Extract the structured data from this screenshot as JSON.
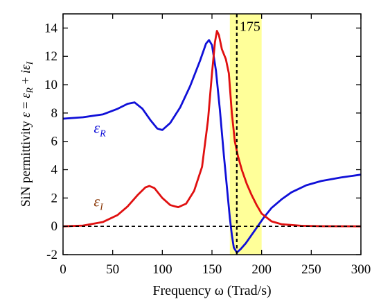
{
  "chart_data": {
    "type": "line",
    "xlabel": "Frequency ω (Trad/s)",
    "ylabel": {
      "prefix": "SiN permittivity ",
      "eps": "ε",
      "eq": " = ",
      "epsR": "ε",
      "subR": "R",
      "plus": " + ",
      "i": "i",
      "epsI": "ε",
      "subI": "I"
    },
    "xlim": [
      0,
      300
    ],
    "ylim": [
      -2,
      15
    ],
    "xticks": [
      0,
      50,
      100,
      150,
      200,
      250,
      300
    ],
    "yticks": [
      -2,
      0,
      2,
      4,
      6,
      8,
      10,
      12,
      14
    ],
    "highlight": {
      "x_from": 168,
      "x_to": 200,
      "color": "#ffff99"
    },
    "marker_line": {
      "x": 175,
      "label": "175"
    },
    "zero_line": {
      "y": 0
    },
    "series": [
      {
        "name": "εR",
        "label_main": "ε",
        "label_sub": "R",
        "color": "#1010d8",
        "points": [
          [
            0,
            7.6
          ],
          [
            20,
            7.7
          ],
          [
            40,
            7.9
          ],
          [
            55,
            8.3
          ],
          [
            65,
            8.65
          ],
          [
            72,
            8.75
          ],
          [
            80,
            8.3
          ],
          [
            88,
            7.5
          ],
          [
            95,
            6.9
          ],
          [
            100,
            6.8
          ],
          [
            108,
            7.3
          ],
          [
            118,
            8.4
          ],
          [
            128,
            9.9
          ],
          [
            138,
            11.7
          ],
          [
            144,
            12.9
          ],
          [
            147,
            13.15
          ],
          [
            150,
            12.8
          ],
          [
            154,
            11.0
          ],
          [
            158,
            8.2
          ],
          [
            162,
            5.0
          ],
          [
            165,
            2.8
          ],
          [
            168,
            0.6
          ],
          [
            170,
            -0.6
          ],
          [
            172,
            -1.5
          ],
          [
            175,
            -1.85
          ],
          [
            179,
            -1.6
          ],
          [
            184,
            -1.2
          ],
          [
            190,
            -0.6
          ],
          [
            196,
            0.0
          ],
          [
            202,
            0.6
          ],
          [
            210,
            1.3
          ],
          [
            220,
            1.9
          ],
          [
            230,
            2.4
          ],
          [
            245,
            2.9
          ],
          [
            260,
            3.2
          ],
          [
            280,
            3.45
          ],
          [
            300,
            3.65
          ]
        ]
      },
      {
        "name": "εI",
        "label_main": "ε",
        "label_sub": "I",
        "color": "#e01010",
        "points": [
          [
            0,
            0.0
          ],
          [
            20,
            0.05
          ],
          [
            40,
            0.3
          ],
          [
            55,
            0.8
          ],
          [
            65,
            1.4
          ],
          [
            75,
            2.2
          ],
          [
            83,
            2.75
          ],
          [
            87,
            2.85
          ],
          [
            92,
            2.7
          ],
          [
            100,
            2.0
          ],
          [
            108,
            1.5
          ],
          [
            116,
            1.35
          ],
          [
            124,
            1.6
          ],
          [
            132,
            2.5
          ],
          [
            140,
            4.2
          ],
          [
            146,
            7.5
          ],
          [
            150,
            10.8
          ],
          [
            153,
            13.0
          ],
          [
            155,
            13.8
          ],
          [
            157,
            13.5
          ],
          [
            160,
            12.5
          ],
          [
            164,
            11.8
          ],
          [
            167,
            10.8
          ],
          [
            170,
            8.0
          ],
          [
            173,
            6.0
          ],
          [
            176,
            5.0
          ],
          [
            180,
            4.0
          ],
          [
            185,
            3.0
          ],
          [
            190,
            2.2
          ],
          [
            195,
            1.5
          ],
          [
            200,
            0.9
          ],
          [
            210,
            0.35
          ],
          [
            220,
            0.15
          ],
          [
            240,
            0.04
          ],
          [
            260,
            0.01
          ],
          [
            300,
            0.0
          ]
        ]
      }
    ]
  }
}
